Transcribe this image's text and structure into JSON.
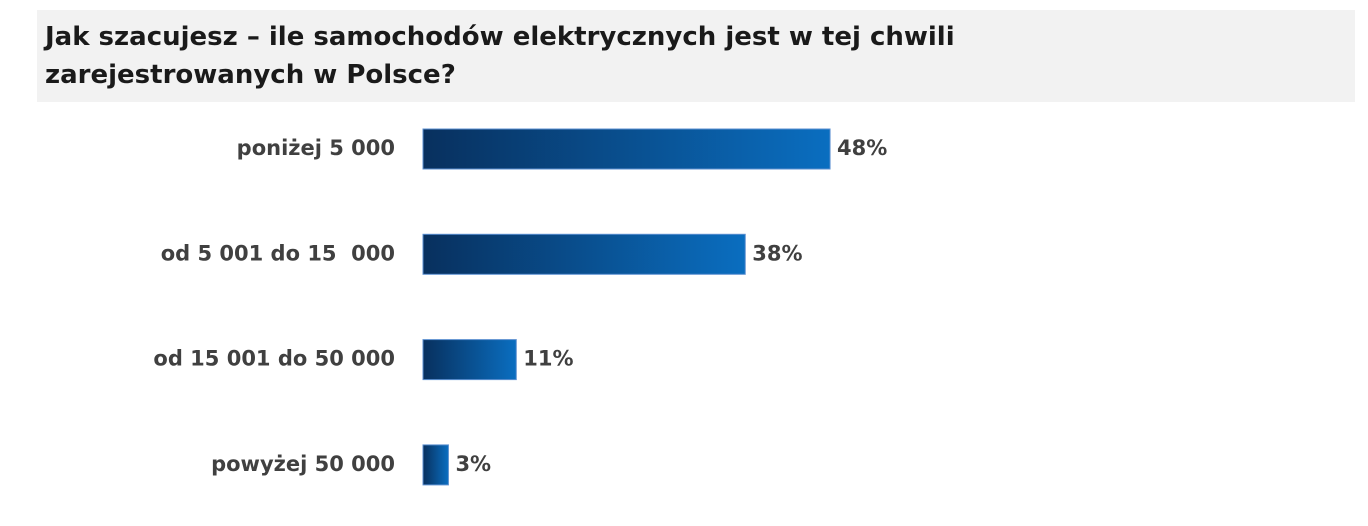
{
  "chart_data": {
    "type": "bar",
    "orientation": "horizontal",
    "title": "Jak szacujesz – ile samochodów elektrycznych jest w tej chwili zarejestrowanych w Polsce?",
    "categories": [
      "poniżej 5 000",
      "od 5 001 do 15  000",
      "od 15 001 do 50 000",
      "powyżej 50 000"
    ],
    "values": [
      48,
      38,
      11,
      3
    ],
    "value_labels": [
      "48%",
      "38%",
      "11%",
      "3%"
    ],
    "color": "#0a6ec0"
  }
}
